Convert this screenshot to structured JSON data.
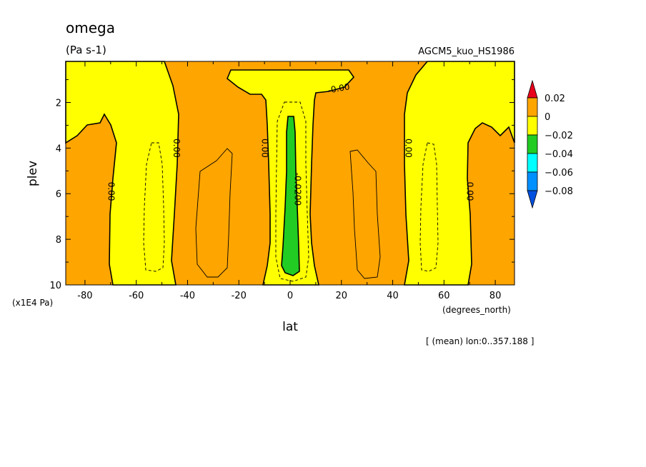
{
  "chart_data": {
    "type": "heatmap",
    "title": "omega",
    "units": "(Pa s-1)",
    "dataset": "AGCM5_kuo_HS1986",
    "xlabel": "lat",
    "xunits": "(degrees_north)",
    "ylabel": "plev",
    "yunits": "(x1E4 Pa)",
    "footnote": "[ (mean) lon:0..357.188 ]",
    "xlim": [
      -87.5,
      87.5
    ],
    "ylim": [
      10,
      0.2
    ],
    "x_ticks": [
      -80,
      -60,
      -40,
      -20,
      0,
      20,
      40,
      60,
      80
    ],
    "x_tick_labels": [
      "-80",
      "-60",
      "-40",
      "-20",
      "0",
      "20",
      "40",
      "60",
      "80"
    ],
    "y_ticks": [
      2,
      4,
      6,
      8,
      10
    ],
    "y_tick_labels": [
      "2",
      "4",
      "6",
      "8",
      "10"
    ],
    "colorbar": {
      "levels": [
        0.02,
        0,
        -0.02,
        -0.04,
        -0.06,
        -0.08
      ],
      "labels": [
        "0.02",
        "0",
        "−0.02",
        "−0.04",
        "−0.06",
        "−0.08"
      ],
      "colors": [
        "#e8001c",
        "#ffa500",
        "#ffff00",
        "#22cc22",
        "#00ffff",
        "#0090ff",
        "#0050e0"
      ]
    },
    "contour_labels": [
      {
        "text": "0.00",
        "lat": -70,
        "plev": 5.9,
        "rotate": 90
      },
      {
        "text": "0.00",
        "lat": -44.5,
        "plev": 4.0,
        "rotate": 90
      },
      {
        "text": "0.00",
        "lat": -10,
        "plev": 4.0,
        "rotate": 90
      },
      {
        "text": "-0.00",
        "lat": 19,
        "plev": 1.4,
        "rotate": -10
      },
      {
        "text": "-0.0200",
        "lat": 2.8,
        "plev": 5.8,
        "rotate": 90
      },
      {
        "text": "0.00",
        "lat": 46,
        "plev": 4.0,
        "rotate": 90
      },
      {
        "text": "0.00",
        "lat": 70,
        "plev": 5.9,
        "rotate": 90
      }
    ]
  }
}
